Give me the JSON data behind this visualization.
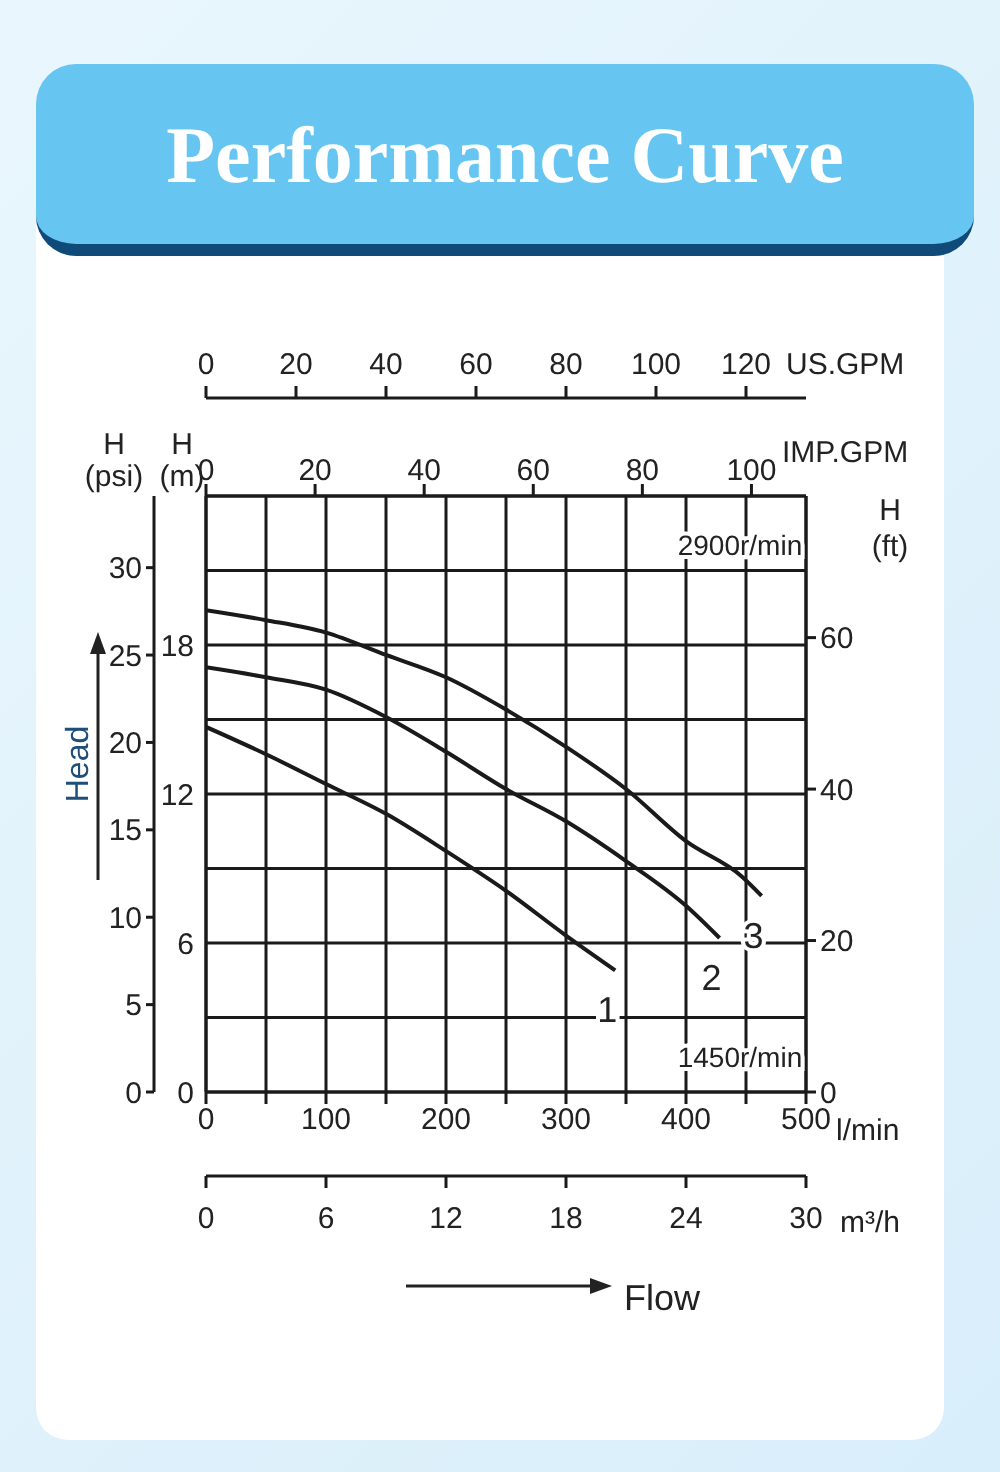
{
  "chart_data": {
    "type": "line",
    "title": "Performance Curve",
    "xlabel": "l/min",
    "x2label": "IMP.GPM",
    "ylabel": "H (m)",
    "y2label": "H (psi)",
    "y3label": "H (ft)",
    "xlim": [
      0,
      500
    ],
    "xticks": [
      0,
      {
        "value": 50,
        "label": null
      },
      100,
      {
        "value": 150,
        "label": null
      },
      200,
      {
        "value": 250,
        "label": null
      },
      300,
      {
        "value": 350,
        "label": null
      },
      400,
      {
        "value": 450,
        "label": null
      },
      500
    ],
    "x2lim": [
      0,
      110
    ],
    "x2ticks": [
      0,
      20,
      40,
      60,
      80,
      100
    ],
    "ylim": [
      0,
      24
    ],
    "yticks": [
      0,
      {
        "value": 3,
        "label": null
      },
      6,
      {
        "value": 9,
        "label": null
      },
      12,
      {
        "value": 15,
        "label": null
      },
      18,
      {
        "value": 21,
        "label": null
      }
    ],
    "y2lim": [
      0,
      34.1
    ],
    "y2ticks": [
      0,
      5,
      10,
      15,
      20,
      25,
      30
    ],
    "y3lim": [
      0,
      78.7
    ],
    "y3ticks": [
      0,
      20,
      40,
      60
    ],
    "grid": true,
    "marker": "none",
    "line_style": "solid",
    "annotations": [
      "Head",
      "Flow",
      "2900r/min",
      "1450r/min",
      "US.GPM",
      "0",
      "20",
      "40",
      "60",
      "80",
      "100",
      "120",
      "m³/h",
      "0",
      "6",
      "12",
      "18",
      "24",
      "30"
    ],
    "series": [
      {
        "name": "1",
        "color": "#1a1a1a",
        "x": [
          0,
          50,
          100,
          150,
          200,
          250,
          300,
          341
        ],
        "values": [
          14.7,
          13.6,
          12.4,
          11.2,
          9.7,
          8.1,
          6.3,
          4.9
        ]
      },
      {
        "name": "2",
        "color": "#1a1a1a",
        "x": [
          0,
          50,
          100,
          150,
          200,
          250,
          300,
          350,
          400,
          428
        ],
        "values": [
          17.1,
          16.7,
          16.2,
          15.1,
          13.7,
          12.2,
          10.9,
          9.3,
          7.5,
          6.2
        ]
      },
      {
        "name": "3",
        "color": "#1a1a1a",
        "x": [
          0,
          50,
          100,
          150,
          200,
          250,
          300,
          350,
          400,
          446,
          463
        ],
        "values": [
          19.4,
          19.0,
          18.5,
          17.6,
          16.7,
          15.4,
          13.9,
          12.2,
          10.1,
          8.7,
          7.9
        ]
      }
    ]
  }
}
